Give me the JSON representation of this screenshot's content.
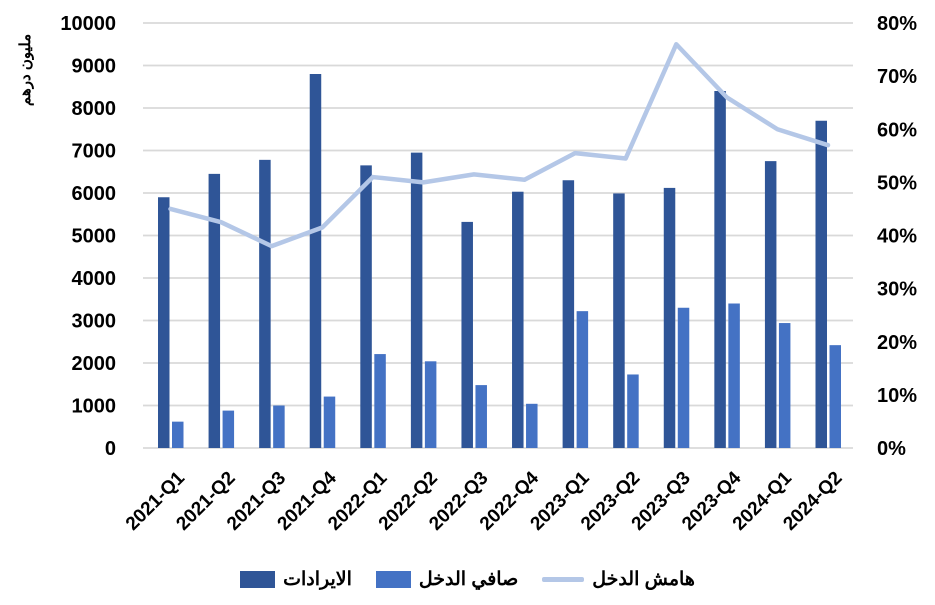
{
  "page": {
    "background": "#FFFFFF",
    "text_color": "#000000"
  },
  "chart_data": {
    "type": "combo-bar-line",
    "title": "",
    "categories": [
      "2021-Q1",
      "2021-Q2",
      "2021-Q3",
      "2021-Q4",
      "2022-Q1",
      "2022-Q2",
      "2022-Q3",
      "2022-Q4",
      "2023-Q1",
      "2023-Q2",
      "2023-Q3",
      "2023-Q4",
      "2024-Q1",
      "2024-Q2"
    ],
    "series": [
      {
        "name": "الايرادات",
        "type": "bar",
        "axis": "left",
        "color": "#2F5597",
        "values": [
          5900,
          6450,
          6780,
          8800,
          6650,
          6950,
          5320,
          6030,
          6300,
          5990,
          6120,
          8400,
          6750,
          7700
        ]
      },
      {
        "name": "صافي الدخل",
        "type": "bar",
        "axis": "left",
        "color": "#4472C4",
        "values": [
          620,
          880,
          1000,
          1210,
          2210,
          2040,
          1480,
          1040,
          3220,
          1730,
          3300,
          3400,
          2940,
          2420
        ]
      },
      {
        "name": "هامش الدخل",
        "type": "line",
        "axis": "right",
        "color": "#B4C7E7",
        "values": [
          45,
          42.5,
          38,
          41.5,
          51,
          50,
          51.5,
          50.5,
          55.5,
          54.5,
          76,
          66,
          60,
          57
        ]
      }
    ],
    "left_axis": {
      "title": "مليون درهم",
      "min": 0,
      "max": 10000,
      "step": 1000,
      "tick_labels": [
        "0",
        "1000",
        "2000",
        "3000",
        "4000",
        "5000",
        "6000",
        "7000",
        "8000",
        "9000",
        "10000"
      ]
    },
    "right_axis": {
      "min": 0,
      "max": 80,
      "step": 10,
      "tick_labels": [
        "0%",
        "10%",
        "20%",
        "30%",
        "40%",
        "50%",
        "60%",
        "70%",
        "80%"
      ]
    },
    "grid": {
      "horizontal": true,
      "vertical": false,
      "color": "#D9D9D9"
    },
    "legend_position": "bottom"
  }
}
